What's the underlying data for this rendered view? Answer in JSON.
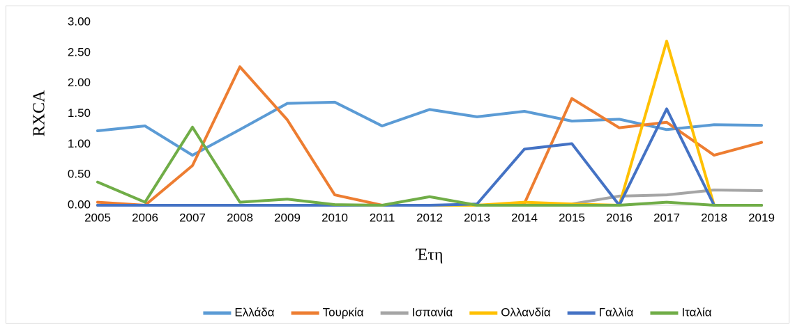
{
  "chart_data": {
    "type": "line",
    "y_label": "RXCA",
    "x_label": "Έτη",
    "categories": [
      "2005",
      "2006",
      "2007",
      "2008",
      "2009",
      "2010",
      "2011",
      "2012",
      "2013",
      "2014",
      "2015",
      "2016",
      "2017",
      "2018",
      "2019"
    ],
    "series": [
      {
        "name": "Ελλάδα",
        "color": "#5b9bd5",
        "values": [
          1.22,
          1.3,
          0.82,
          1.24,
          1.67,
          1.69,
          1.3,
          1.57,
          1.45,
          1.54,
          1.38,
          1.41,
          1.24,
          1.32,
          1.31
        ]
      },
      {
        "name": "Τουρκία",
        "color": "#ed7d31",
        "values": [
          0.05,
          0.0,
          0.65,
          2.27,
          1.4,
          0.17,
          0.0,
          0.0,
          0.0,
          0.03,
          1.75,
          1.27,
          1.36,
          0.82,
          1.03
        ]
      },
      {
        "name": "Ισπανία",
        "color": "#a5a5a5",
        "values": [
          0,
          0,
          0,
          0,
          0,
          0,
          0,
          0,
          0,
          0,
          0.02,
          0.15,
          0.17,
          0.25,
          0.24
        ]
      },
      {
        "name": "Ολλανδία",
        "color": "#ffc000",
        "values": [
          0,
          0,
          0,
          0,
          0,
          0,
          0,
          0,
          0,
          0.05,
          0.02,
          0,
          2.69,
          0,
          0
        ]
      },
      {
        "name": "Γαλλία",
        "color": "#4472c4",
        "values": [
          0,
          0,
          0,
          0,
          0,
          0,
          0,
          0,
          0.02,
          0.92,
          1.01,
          0,
          1.58,
          0,
          0
        ]
      },
      {
        "name": "Ιταλία",
        "color": "#70ad47",
        "values": [
          0.38,
          0.05,
          1.28,
          0.05,
          0.1,
          0.01,
          0,
          0.14,
          0,
          0,
          0,
          0,
          0.05,
          0,
          0
        ]
      }
    ],
    "ylim": [
      0,
      3
    ],
    "yticks": [
      {
        "value": 0,
        "label": "0.00"
      },
      {
        "value": 0.5,
        "label": "0.50"
      },
      {
        "value": 1,
        "label": "1.00"
      },
      {
        "value": 1.5,
        "label": "1.50"
      },
      {
        "value": 2,
        "label": "2.00"
      },
      {
        "value": 2.5,
        "label": "2.50"
      },
      {
        "value": 3,
        "label": "3.00"
      }
    ],
    "grid": false,
    "legend": "bottom"
  }
}
